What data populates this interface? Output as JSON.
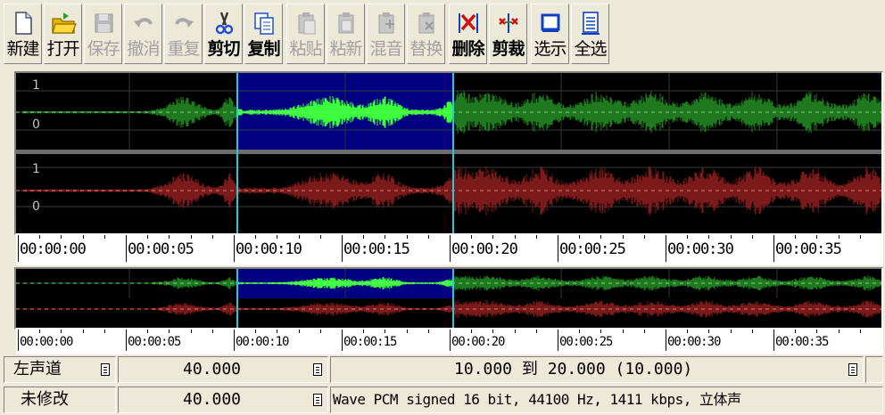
{
  "toolbar": {
    "buttons": [
      {
        "id": "new",
        "label": "新建",
        "icon": "new-file-icon",
        "enabled": true,
        "bold": false
      },
      {
        "id": "open",
        "label": "打开",
        "icon": "open-folder-icon",
        "enabled": true,
        "bold": false
      },
      {
        "id": "save",
        "label": "保存",
        "icon": "save-disk-icon",
        "enabled": false,
        "bold": false
      },
      {
        "id": "undo",
        "label": "撤消",
        "icon": "undo-arrow-icon",
        "enabled": false,
        "bold": false
      },
      {
        "id": "redo",
        "label": "重复",
        "icon": "redo-arrow-icon",
        "enabled": false,
        "bold": false
      },
      {
        "id": "cut",
        "label": "剪切",
        "icon": "scissors-icon",
        "enabled": true,
        "bold": true
      },
      {
        "id": "copy",
        "label": "复制",
        "icon": "copy-pages-icon",
        "enabled": true,
        "bold": true
      },
      {
        "id": "paste",
        "label": "粘贴",
        "icon": "paste-clipboard-icon",
        "enabled": false,
        "bold": false
      },
      {
        "id": "paste-new",
        "label": "粘新",
        "icon": "paste-new-clipboard-icon",
        "enabled": false,
        "bold": false
      },
      {
        "id": "mix",
        "label": "混音",
        "icon": "mix-paste-icon",
        "enabled": false,
        "bold": false
      },
      {
        "id": "replace",
        "label": "替换",
        "icon": "replace-paste-icon",
        "enabled": false,
        "bold": false
      },
      {
        "id": "delete",
        "label": "删除",
        "icon": "delete-selection-icon",
        "enabled": true,
        "bold": true
      },
      {
        "id": "trim",
        "label": "剪裁",
        "icon": "trim-selection-icon",
        "enabled": true,
        "bold": true
      },
      {
        "id": "select-view",
        "label": "选示",
        "icon": "select-view-icon",
        "enabled": true,
        "bold": false
      },
      {
        "id": "select-all",
        "label": "全选",
        "icon": "select-all-icon",
        "enabled": true,
        "bold": false
      }
    ]
  },
  "waveform": {
    "channels": [
      {
        "name": "left",
        "color": "#1f7a1f",
        "selected_color": "#3cff3c",
        "scale_top": "1",
        "scale_mid": "0"
      },
      {
        "name": "right",
        "color": "#7a1a1a",
        "selected_color": "#7a1a1a",
        "scale_top": "1",
        "scale_mid": "0"
      }
    ],
    "total_seconds": 40,
    "selection_start": 10,
    "selection_end": 20,
    "selection_color": "#000080"
  },
  "ruler": {
    "labels": [
      "00:00:00",
      "00:00:05",
      "00:00:10",
      "00:00:15",
      "00:00:20",
      "00:00:25",
      "00:00:30",
      "00:00:35"
    ]
  },
  "overview_ruler": {
    "labels": [
      "00:00:00",
      "00:00:05",
      "00:00:10",
      "00:00:15",
      "00:00:20",
      "00:00:25",
      "00:00:30",
      "00:00:35"
    ]
  },
  "status": {
    "row1": {
      "channel": "左声道",
      "length": "40.000",
      "selection": "10.000 到 20.000 (10.000)"
    },
    "row2": {
      "state": "未修改",
      "length": "40.000",
      "format": "Wave PCM signed 16 bit, 44100 Hz, 1411 kbps, 立体声"
    }
  }
}
